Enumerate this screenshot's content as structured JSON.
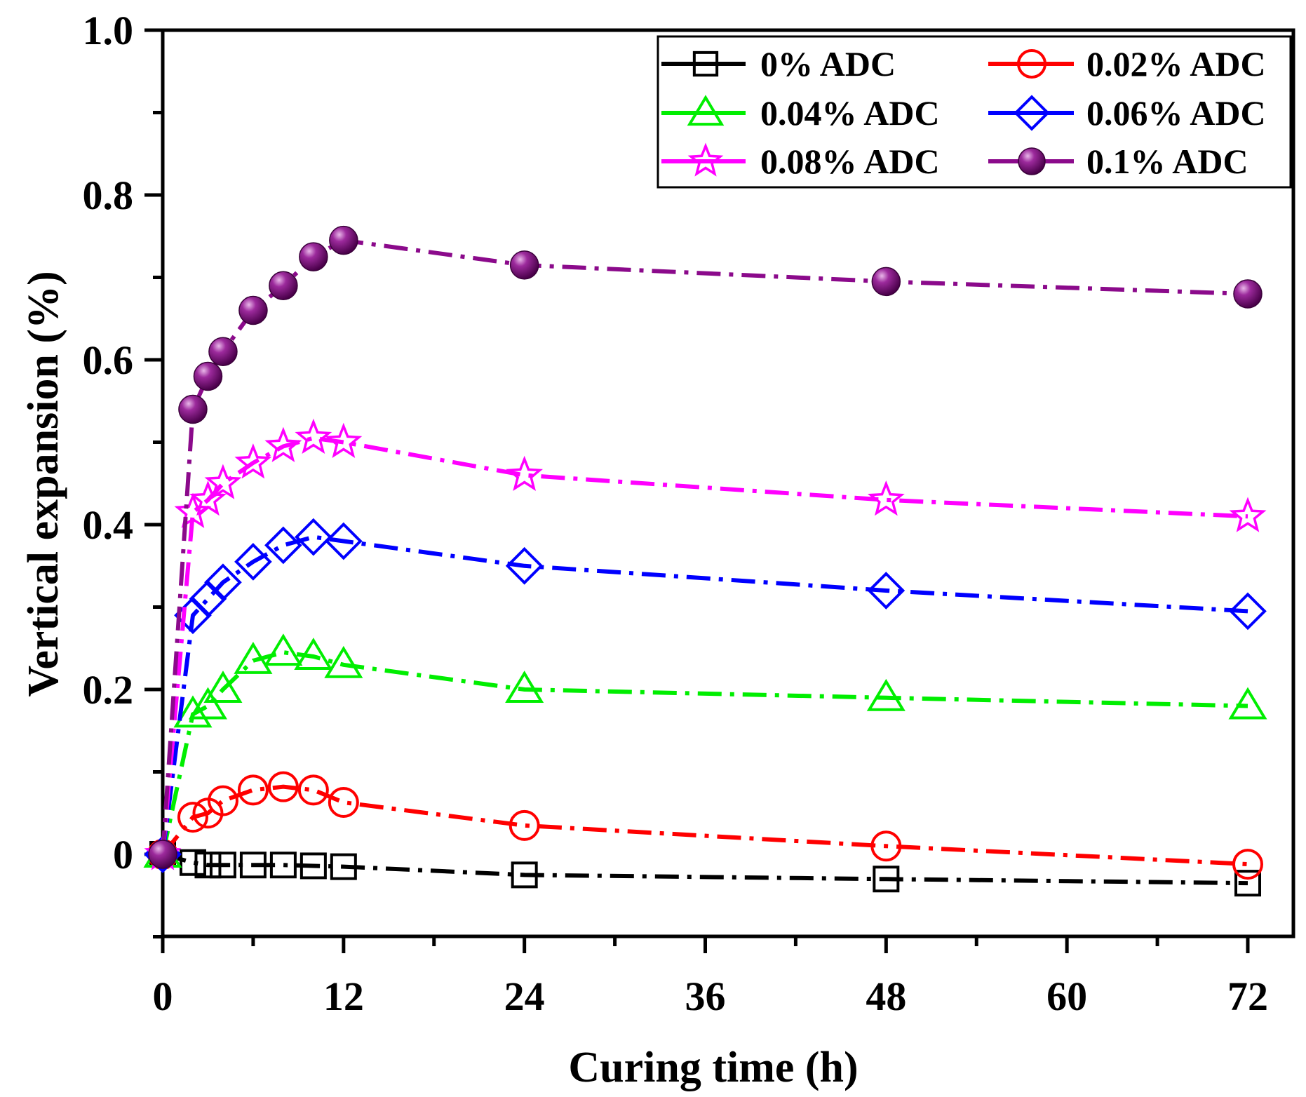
{
  "chart_data": {
    "type": "line",
    "title": "",
    "xlabel": "Curing time (h)",
    "ylabel": "Vertical expansion (%)",
    "xlim": [
      0,
      74.5
    ],
    "ylim": [
      -0.1,
      1.0
    ],
    "x_ticks": [
      0,
      12,
      24,
      36,
      48,
      60,
      72
    ],
    "x_tick_labels": [
      "0",
      "12",
      "24",
      "36",
      "48",
      "60",
      "72"
    ],
    "y_ticks": [
      0,
      0.2,
      0.4,
      0.6,
      0.8,
      1.0
    ],
    "y_tick_labels": [
      "0",
      "0.2",
      "0.4",
      "0.6",
      "0.8",
      "1.0"
    ],
    "grid": false,
    "legend_position": "top-right",
    "x": [
      0,
      2,
      3,
      4,
      6,
      8,
      10,
      12,
      24,
      48,
      72
    ],
    "series": [
      {
        "name": "0% ADC",
        "color": "#000000",
        "marker": "square",
        "values": [
          0,
          -0.01,
          -0.013,
          -0.013,
          -0.013,
          -0.013,
          -0.014,
          -0.015,
          -0.025,
          -0.03,
          -0.035
        ]
      },
      {
        "name": "0.02% ADC",
        "color": "#ff0000",
        "marker": "circle",
        "values": [
          0,
          0.045,
          0.05,
          0.065,
          0.078,
          0.082,
          0.078,
          0.063,
          0.035,
          0.01,
          -0.012
        ]
      },
      {
        "name": "0.04% ADC",
        "color": "#00ee00",
        "marker": "triangle",
        "values": [
          0,
          0.17,
          0.18,
          0.2,
          0.235,
          0.245,
          0.24,
          0.23,
          0.2,
          0.19,
          0.18
        ]
      },
      {
        "name": "0.06% ADC",
        "color": "#0000ff",
        "marker": "diamond",
        "values": [
          0,
          0.29,
          0.31,
          0.33,
          0.355,
          0.375,
          0.385,
          0.38,
          0.35,
          0.32,
          0.295
        ]
      },
      {
        "name": "0.08% ADC",
        "color": "#ff00ff",
        "marker": "star",
        "values": [
          0,
          0.415,
          0.43,
          0.45,
          0.475,
          0.495,
          0.505,
          0.5,
          0.46,
          0.43,
          0.41
        ]
      },
      {
        "name": "0.1% ADC",
        "color": "#8b0a8b",
        "marker": "ball",
        "values": [
          0,
          0.54,
          0.58,
          0.61,
          0.66,
          0.69,
          0.725,
          0.745,
          0.715,
          0.695,
          0.68
        ]
      }
    ]
  }
}
